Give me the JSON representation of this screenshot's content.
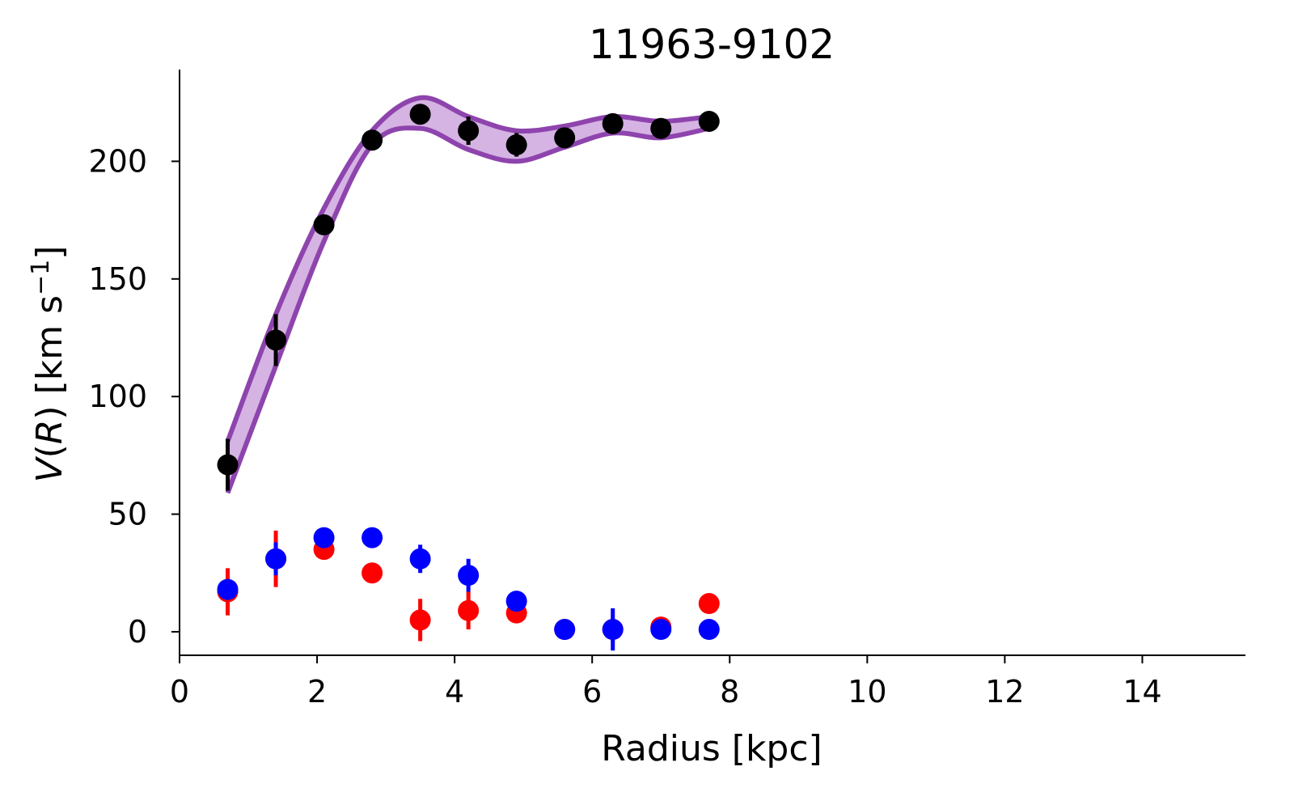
{
  "chart_data": {
    "type": "scatter",
    "title": "11963-9102",
    "xlabel": "Radius [kpc]",
    "ylabel": "V(R) [km s⁻¹]",
    "ylabel_parts": {
      "v": "V",
      "open": "(",
      "r": "R",
      "close": ")",
      "unit": " [km s",
      "sup": "−1",
      "end": "]"
    },
    "xlim": [
      0,
      15.5
    ],
    "ylim": [
      -10,
      239
    ],
    "xticks": [
      0,
      2,
      4,
      6,
      8,
      10,
      12,
      14
    ],
    "yticks": [
      0,
      50,
      100,
      150,
      200
    ],
    "grid": false,
    "colors": {
      "black": "#000000",
      "red": "#ff0000",
      "blue": "#0000ff",
      "band_fill": "#d5b3e3",
      "band_line": "#8e44ad"
    },
    "series": [
      {
        "color": "black",
        "x": [
          0.7,
          1.4,
          2.1,
          2.8,
          3.5,
          4.2,
          4.9,
          5.6,
          6.3,
          7.0,
          7.7
        ],
        "y": [
          71,
          124,
          173,
          209,
          220,
          213,
          207,
          210,
          216,
          214,
          217
        ],
        "err": [
          11,
          11,
          4,
          3,
          4,
          6,
          5,
          3,
          3,
          2,
          2
        ]
      },
      {
        "color": "red",
        "x": [
          0.7,
          1.4,
          2.1,
          2.8,
          3.5,
          4.2,
          4.9,
          5.6,
          6.3,
          7.0,
          7.7
        ],
        "y": [
          17,
          31,
          35,
          25,
          5,
          9,
          8,
          1,
          1,
          2,
          12
        ],
        "err": [
          10,
          12,
          4,
          3,
          9,
          8,
          3,
          3,
          5,
          4,
          2
        ]
      },
      {
        "color": "blue",
        "x": [
          0.7,
          1.4,
          2.1,
          2.8,
          3.5,
          4.2,
          4.9,
          5.6,
          6.3,
          7.0,
          7.7
        ],
        "y": [
          18,
          31,
          40,
          40,
          31,
          24,
          13,
          1,
          1,
          1,
          1
        ],
        "err": [
          4,
          7,
          3,
          4,
          6,
          7,
          4,
          4,
          9,
          4,
          2
        ]
      }
    ],
    "model_band": {
      "x": [
        0.7,
        1.4,
        2.1,
        2.8,
        3.5,
        4.2,
        4.9,
        5.6,
        6.3,
        7.0,
        7.7
      ],
      "upper": [
        81,
        135,
        180,
        213,
        227,
        219,
        213,
        215,
        219,
        217,
        219
      ],
      "lower": [
        59,
        113,
        166,
        207,
        214,
        205,
        200,
        206,
        212,
        210,
        214
      ]
    }
  }
}
